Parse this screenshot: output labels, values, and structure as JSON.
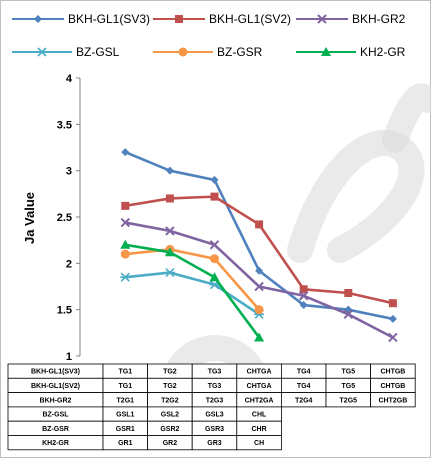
{
  "chart_data": {
    "type": "line",
    "ylabel": "Ja Value",
    "xlabel": "",
    "ylim": [
      1,
      4
    ],
    "yticks": [
      "1",
      "1.5",
      "2",
      "2.5",
      "3",
      "3.5",
      "4"
    ],
    "legend_position": "top",
    "grid": false,
    "x": [
      0,
      1,
      2,
      3,
      4,
      5,
      6
    ],
    "series": [
      {
        "name": "BKH-GL1(SV3)",
        "color": "#4f81bd",
        "marker": "diamond",
        "values": [
          3.2,
          3.0,
          2.9,
          1.92,
          1.55,
          1.5,
          1.4
        ]
      },
      {
        "name": "BKH-GL1(SV2)",
        "color": "#c0504d",
        "marker": "square",
        "values": [
          2.62,
          2.7,
          2.72,
          2.42,
          1.72,
          1.68,
          1.57
        ]
      },
      {
        "name": "BKH-GR2",
        "color": "#8064a2",
        "marker": "x",
        "values": [
          2.44,
          2.35,
          2.2,
          1.75,
          1.65,
          1.45,
          1.2
        ]
      },
      {
        "name": "BZ-GSL",
        "color": "#4bacc6",
        "marker": "asterisk",
        "values": [
          1.85,
          1.9,
          1.77,
          1.45,
          null,
          null,
          null
        ]
      },
      {
        "name": "BZ-GSR",
        "color": "#f79646",
        "marker": "circle",
        "values": [
          2.1,
          2.15,
          2.05,
          1.5,
          null,
          null,
          null
        ]
      },
      {
        "name": "KH2-GR",
        "color": "#00b050",
        "marker": "triangle",
        "values": [
          2.2,
          2.12,
          1.85,
          1.2,
          null,
          null,
          null
        ]
      }
    ],
    "table": [
      {
        "label": "BKH-GL1(SV3)",
        "cells": [
          "TG1",
          "TG2",
          "TG3",
          "CHTGA",
          "TG4",
          "TG5",
          "CHTGB"
        ]
      },
      {
        "label": "BKH-GL1(SV2)",
        "cells": [
          "TG1",
          "TG2",
          "TG3",
          "CHTGA",
          "TG4",
          "TG5",
          "CHTGB"
        ]
      },
      {
        "label": "BKH-GR2",
        "cells": [
          "T2G1",
          "T2G2",
          "T2G3",
          "CHT2GA",
          "T2G4",
          "T2G5",
          "CHT2GB"
        ]
      },
      {
        "label": "BZ-GSL",
        "cells": [
          "GSL1",
          "GSL2",
          "GSL3",
          "CHL"
        ]
      },
      {
        "label": "BZ-GSR",
        "cells": [
          "GSR1",
          "GSR2",
          "GSR3",
          "CHR"
        ]
      },
      {
        "label": "KH2-GR",
        "cells": [
          "GR1",
          "GR2",
          "GR3",
          "CH"
        ]
      }
    ]
  }
}
